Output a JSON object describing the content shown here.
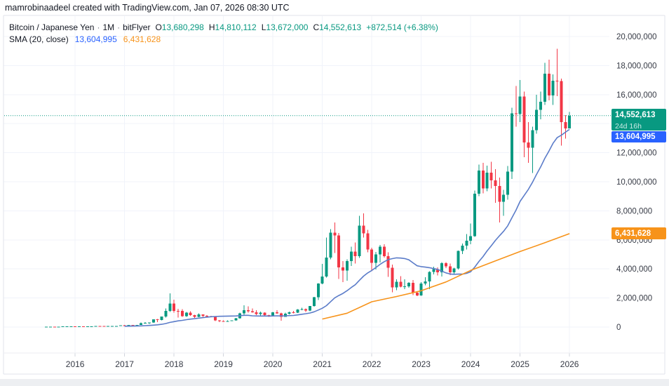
{
  "watermark": "mamrobinaadeel created with TradingView.com, Jan 07, 2026 08:30 UTC",
  "legend": {
    "symbol": "Bitcoin / Japanese Yen",
    "separator": "·",
    "interval": "1M",
    "exchange": "bitFlyer",
    "ohlc": {
      "o_label": "O",
      "o": "13,680,298",
      "h_label": "H",
      "h": "14,810,112",
      "l_label": "L",
      "l": "13,672,000",
      "c_label": "C",
      "c": "14,552,613",
      "change": "+872,514 (+6.38%)"
    },
    "indicator": {
      "name": "SMA (20, close)",
      "value_blue": "13,604,995",
      "value_orange": "6,431,628"
    }
  },
  "badges": {
    "last_price": "14,552,613",
    "countdown": "24d 16h",
    "sma_value": "13,604,995",
    "orange_value": "6,431,628"
  },
  "colors": {
    "up": "#089981",
    "down": "#F23645",
    "sma_blue": "#5b7cc9",
    "sma_orange": "#F7931A",
    "accent_blue": "#2962FF",
    "badge_orange": "#F7931A",
    "grid": "#f0f3fa",
    "border": "#e0e3eb",
    "axis_sep": "#eceef2",
    "axis_text": "#363a45",
    "dotted_line": "#089981"
  },
  "chart_data": {
    "type": "candlestick",
    "title": "Bitcoin / Japanese Yen",
    "exchange": "bitFlyer",
    "interval": "1M",
    "unit": "JPY (values in millions)",
    "start_month": "2015-06",
    "y_axis": {
      "min": 0,
      "max": 20400000,
      "tick_step": 2000000,
      "grid": true
    },
    "y_ticks": [
      "0",
      "2,000,000",
      "4,000,000",
      "6,000,000",
      "8,000,000",
      "10,000,000",
      "12,000,000",
      "14,000,000",
      "16,000,000",
      "18,000,000",
      "20,000,000"
    ],
    "x_ticks": {
      "labels": [
        "2016",
        "2017",
        "2018",
        "2019",
        "2020",
        "2021",
        "2022",
        "2023",
        "2024",
        "2025",
        "2026"
      ],
      "month_index": [
        7,
        19,
        31,
        43,
        55,
        67,
        79,
        91,
        103,
        115,
        127
      ]
    },
    "last": {
      "open": 13680298,
      "high": 14810112,
      "low": 13672000,
      "close": 14552613,
      "change": 872514,
      "change_pct": "+6.38%",
      "countdown": "24d 16h"
    },
    "candles": [
      [
        0.028,
        0.033,
        0.026,
        0.032
      ],
      [
        0.032,
        0.036,
        0.03,
        0.035
      ],
      [
        0.035,
        0.036,
        0.024,
        0.028
      ],
      [
        0.028,
        0.03,
        0.027,
        0.029
      ],
      [
        0.029,
        0.04,
        0.028,
        0.038
      ],
      [
        0.038,
        0.06,
        0.037,
        0.046
      ],
      [
        0.046,
        0.056,
        0.042,
        0.052
      ],
      [
        0.052,
        0.053,
        0.042,
        0.045
      ],
      [
        0.045,
        0.051,
        0.043,
        0.049
      ],
      [
        0.049,
        0.052,
        0.044,
        0.047
      ],
      [
        0.047,
        0.051,
        0.046,
        0.05
      ],
      [
        0.05,
        0.06,
        0.048,
        0.059
      ],
      [
        0.059,
        0.08,
        0.055,
        0.069
      ],
      [
        0.069,
        0.072,
        0.06,
        0.064
      ],
      [
        0.064,
        0.066,
        0.055,
        0.059
      ],
      [
        0.059,
        0.063,
        0.057,
        0.062
      ],
      [
        0.062,
        0.074,
        0.06,
        0.072
      ],
      [
        0.072,
        0.078,
        0.068,
        0.075
      ],
      [
        0.075,
        0.118,
        0.074,
        0.113
      ],
      [
        0.113,
        0.135,
        0.085,
        0.111
      ],
      [
        0.111,
        0.137,
        0.105,
        0.135
      ],
      [
        0.135,
        0.148,
        0.105,
        0.121
      ],
      [
        0.121,
        0.152,
        0.118,
        0.15
      ],
      [
        0.15,
        0.311,
        0.148,
        0.255
      ],
      [
        0.255,
        0.334,
        0.245,
        0.278
      ],
      [
        0.278,
        0.325,
        0.212,
        0.317
      ],
      [
        0.317,
        0.526,
        0.3,
        0.52
      ],
      [
        0.52,
        0.555,
        0.33,
        0.485
      ],
      [
        0.485,
        0.735,
        0.47,
        0.73
      ],
      [
        0.73,
        1.28,
        0.655,
        1.12
      ],
      [
        1.12,
        2.33,
        1.05,
        1.62
      ],
      [
        1.62,
        1.88,
        1.0,
        1.11
      ],
      [
        1.11,
        1.26,
        0.65,
        1.1
      ],
      [
        1.1,
        1.24,
        0.7,
        0.74
      ],
      [
        0.74,
        1.04,
        0.71,
        1.0
      ],
      [
        1.0,
        1.08,
        0.78,
        0.82
      ],
      [
        0.82,
        0.85,
        0.64,
        0.71
      ],
      [
        0.71,
        0.94,
        0.68,
        0.86
      ],
      [
        0.86,
        0.88,
        0.65,
        0.78
      ],
      [
        0.78,
        0.82,
        0.69,
        0.75
      ],
      [
        0.75,
        0.78,
        0.69,
        0.72
      ],
      [
        0.72,
        0.73,
        0.41,
        0.45
      ],
      [
        0.45,
        0.48,
        0.35,
        0.41
      ],
      [
        0.41,
        0.45,
        0.365,
        0.375
      ],
      [
        0.375,
        0.46,
        0.37,
        0.417
      ],
      [
        0.417,
        0.465,
        0.41,
        0.453
      ],
      [
        0.453,
        0.62,
        0.445,
        0.593
      ],
      [
        0.593,
        0.99,
        0.585,
        0.937
      ],
      [
        0.937,
        1.5,
        0.82,
        1.17
      ],
      [
        1.17,
        1.42,
        0.98,
        1.09
      ],
      [
        1.09,
        1.29,
        0.99,
        1.02
      ],
      [
        1.02,
        1.16,
        0.83,
        0.89
      ],
      [
        0.89,
        1.07,
        0.79,
        0.99
      ],
      [
        0.99,
        1.02,
        0.73,
        0.825
      ],
      [
        0.825,
        0.84,
        0.7,
        0.78
      ],
      [
        0.78,
        1.03,
        0.75,
        1.02
      ],
      [
        1.02,
        1.15,
        0.91,
        0.93
      ],
      [
        0.93,
        0.99,
        0.44,
        0.7
      ],
      [
        0.7,
        0.99,
        0.69,
        0.92
      ],
      [
        0.92,
        1.06,
        0.88,
        1.02
      ],
      [
        1.02,
        1.1,
        0.95,
        0.985
      ],
      [
        0.985,
        1.22,
        0.96,
        1.2
      ],
      [
        1.2,
        1.33,
        1.17,
        1.23
      ],
      [
        1.23,
        1.27,
        1.03,
        1.14
      ],
      [
        1.14,
        1.46,
        1.09,
        1.45
      ],
      [
        1.45,
        2.08,
        1.4,
        2.05
      ],
      [
        2.05,
        3.03,
        1.87,
        3.0
      ],
      [
        3.0,
        4.35,
        2.95,
        3.48
      ],
      [
        3.48,
        6.16,
        3.4,
        4.79
      ],
      [
        4.79,
        6.74,
        4.65,
        6.5
      ],
      [
        6.5,
        7.2,
        5.1,
        6.3
      ],
      [
        6.3,
        6.48,
        3.3,
        4.1
      ],
      [
        4.1,
        4.54,
        3.1,
        3.88
      ],
      [
        3.88,
        4.65,
        3.2,
        4.55
      ],
      [
        4.55,
        5.53,
        4.2,
        5.19
      ],
      [
        5.19,
        5.82,
        4.38,
        4.87
      ],
      [
        4.87,
        7.65,
        4.75,
        6.98
      ],
      [
        6.98,
        7.83,
        6.15,
        6.46
      ],
      [
        6.46,
        6.7,
        5.15,
        5.33
      ],
      [
        5.33,
        5.45,
        3.85,
        4.43
      ],
      [
        4.43,
        5.17,
        3.95,
        5.01
      ],
      [
        5.01,
        5.65,
        4.45,
        5.54
      ],
      [
        5.54,
        5.7,
        4.78,
        4.89
      ],
      [
        4.89,
        5.15,
        3.45,
        4.09
      ],
      [
        4.09,
        4.3,
        2.38,
        2.72
      ],
      [
        2.72,
        3.28,
        2.54,
        3.11
      ],
      [
        3.11,
        3.5,
        2.72,
        2.78
      ],
      [
        2.78,
        3.28,
        2.62,
        2.81
      ],
      [
        2.81,
        3.1,
        2.7,
        3.04
      ],
      [
        3.04,
        3.23,
        2.19,
        2.37
      ],
      [
        2.37,
        2.42,
        2.13,
        2.17
      ],
      [
        2.17,
        3.08,
        2.15,
        3.0
      ],
      [
        3.0,
        3.44,
        2.88,
        3.15
      ],
      [
        3.15,
        3.85,
        2.62,
        3.79
      ],
      [
        3.79,
        4.16,
        3.63,
        3.99
      ],
      [
        3.99,
        4.11,
        3.55,
        3.78
      ],
      [
        3.78,
        4.46,
        3.47,
        4.4
      ],
      [
        4.4,
        4.48,
        4.05,
        4.17
      ],
      [
        4.17,
        4.37,
        3.58,
        3.77
      ],
      [
        3.77,
        4.08,
        3.66,
        4.03
      ],
      [
        4.03,
        5.27,
        3.95,
        5.23
      ],
      [
        5.23,
        5.75,
        5.03,
        5.6
      ],
      [
        5.6,
        6.39,
        5.33,
        5.95
      ],
      [
        5.95,
        7.13,
        5.69,
        6.25
      ],
      [
        6.25,
        9.4,
        6.2,
        9.17
      ],
      [
        9.17,
        11.18,
        9.0,
        10.78
      ],
      [
        10.78,
        11.3,
        9.2,
        9.55
      ],
      [
        9.55,
        11.12,
        9.35,
        10.64
      ],
      [
        10.64,
        11.37,
        9.55,
        10.1
      ],
      [
        10.1,
        10.88,
        8.55,
        9.7
      ],
      [
        9.7,
        10.3,
        7.2,
        8.62
      ],
      [
        8.62,
        9.45,
        7.65,
        9.1
      ],
      [
        9.1,
        11.08,
        8.77,
        10.7
      ],
      [
        10.7,
        15.1,
        10.2,
        14.7
      ],
      [
        14.7,
        16.6,
        13.8,
        14.65
      ],
      [
        14.65,
        17.0,
        14.1,
        15.87
      ],
      [
        15.87,
        16.2,
        11.7,
        12.71
      ],
      [
        12.71,
        14.1,
        11.3,
        12.35
      ],
      [
        12.35,
        13.8,
        10.6,
        13.55
      ],
      [
        13.55,
        16.0,
        13.3,
        14.95
      ],
      [
        14.95,
        16.2,
        14.3,
        15.5
      ],
      [
        15.5,
        18.2,
        15.3,
        17.45
      ],
      [
        17.45,
        18.4,
        15.6,
        15.93
      ],
      [
        15.93,
        17.4,
        15.3,
        16.95
      ],
      [
        16.95,
        19.15,
        15.9,
        16.93
      ],
      [
        16.93,
        17.1,
        12.5,
        14.1
      ],
      [
        14.1,
        14.6,
        12.96,
        13.68
      ],
      [
        13.68,
        14.81,
        13.672,
        14.553
      ]
    ],
    "overlays": [
      {
        "name": "SMA 20 (blue)",
        "derive": "sma_of_closes",
        "length": 20,
        "last_value": 13604995
      },
      {
        "name": "long SMA (orange)",
        "last_value": 6431628,
        "points_month_value": [
          [
            67,
            0.55
          ],
          [
            73,
            0.95
          ],
          [
            79,
            1.74
          ],
          [
            85,
            2.1
          ],
          [
            91,
            2.5
          ],
          [
            97,
            3.1
          ],
          [
            103,
            3.9
          ],
          [
            109,
            4.55
          ],
          [
            115,
            5.2
          ],
          [
            121,
            5.8
          ],
          [
            127,
            6.43
          ]
        ]
      }
    ]
  }
}
